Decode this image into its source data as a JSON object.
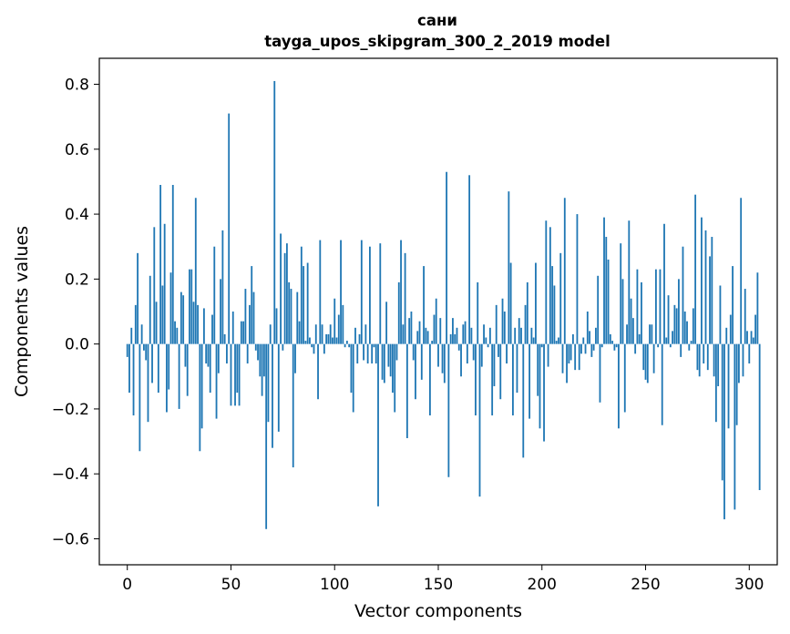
{
  "chart_data": {
    "type": "bar",
    "title": "сани",
    "subtitle": "tayga_upos_skipgram_300_2_2019 model",
    "xlabel": "Vector components",
    "ylabel": "Components values",
    "xlim": [
      -13.5,
      313.5
    ],
    "ylim": [
      -0.68,
      0.88
    ],
    "x_ticks": [
      0,
      50,
      100,
      150,
      200,
      250,
      300
    ],
    "x_tick_labels": [
      "0",
      "50",
      "100",
      "150",
      "200",
      "250",
      "300"
    ],
    "y_ticks": [
      -0.6,
      -0.4,
      -0.2,
      0.0,
      0.2,
      0.4,
      0.6,
      0.8
    ],
    "y_tick_labels": [
      "−0.6",
      "−0.4",
      "−0.2",
      "0.0",
      "0.2",
      "0.4",
      "0.6",
      "0.8"
    ],
    "grid": false,
    "bar_color": "#1f77b4",
    "values": [
      -0.04,
      -0.15,
      0.05,
      -0.22,
      0.12,
      0.28,
      -0.33,
      0.06,
      -0.02,
      -0.05,
      -0.24,
      0.21,
      -0.12,
      0.36,
      0.13,
      -0.15,
      0.49,
      0.18,
      0.37,
      -0.21,
      -0.14,
      0.22,
      0.49,
      0.07,
      0.05,
      -0.2,
      0.16,
      0.15,
      -0.07,
      -0.16,
      0.23,
      0.23,
      0.13,
      0.45,
      0.12,
      -0.33,
      -0.26,
      0.11,
      -0.06,
      -0.07,
      -0.15,
      0.09,
      0.3,
      -0.23,
      -0.09,
      0.2,
      0.35,
      0.03,
      -0.06,
      0.71,
      -0.19,
      0.1,
      -0.19,
      -0.15,
      -0.19,
      0.07,
      0.07,
      0.17,
      -0.06,
      0.12,
      0.24,
      0.16,
      -0.02,
      -0.05,
      -0.1,
      -0.16,
      -0.1,
      -0.57,
      -0.24,
      0.06,
      -0.32,
      0.81,
      0.11,
      -0.27,
      0.34,
      -0.02,
      0.28,
      0.31,
      0.19,
      0.17,
      -0.38,
      -0.09,
      0.16,
      0.07,
      0.3,
      0.24,
      0.01,
      0.25,
      0.02,
      -0.01,
      -0.03,
      0.06,
      -0.17,
      0.32,
      0.06,
      -0.03,
      0.03,
      0.03,
      0.06,
      0.02,
      0.14,
      0.02,
      0.09,
      0.32,
      0.12,
      -0.01,
      0.01,
      -0.01,
      -0.15,
      -0.21,
      0.05,
      -0.06,
      0.03,
      0.32,
      -0.05,
      0.06,
      -0.06,
      0.3,
      -0.06,
      -0.01,
      -0.06,
      -0.5,
      0.31,
      -0.11,
      -0.12,
      0.13,
      -0.07,
      -0.1,
      -0.15,
      -0.21,
      -0.05,
      0.19,
      0.32,
      0.06,
      0.28,
      -0.29,
      0.08,
      0.1,
      -0.05,
      -0.17,
      0.04,
      0.07,
      -0.11,
      0.24,
      0.05,
      0.04,
      -0.22,
      0.01,
      0.09,
      0.14,
      -0.07,
      0.08,
      -0.09,
      -0.12,
      0.53,
      -0.41,
      0.03,
      0.08,
      0.03,
      0.05,
      -0.02,
      -0.1,
      0.06,
      0.07,
      -0.06,
      0.52,
      0.05,
      -0.05,
      -0.22,
      0.19,
      -0.47,
      -0.07,
      0.06,
      0.02,
      -0.01,
      0.05,
      -0.22,
      -0.13,
      0.12,
      -0.04,
      -0.17,
      0.14,
      0.1,
      -0.06,
      0.47,
      0.25,
      -0.22,
      0.05,
      -0.15,
      0.08,
      0.05,
      -0.35,
      0.12,
      0.19,
      -0.23,
      0.05,
      0.02,
      0.25,
      -0.16,
      -0.26,
      -0.01,
      -0.3,
      0.38,
      -0.07,
      0.36,
      0.24,
      0.18,
      0.01,
      0.02,
      0.28,
      -0.09,
      0.45,
      -0.12,
      -0.06,
      -0.05,
      0.03,
      -0.08,
      0.4,
      -0.08,
      -0.03,
      0.02,
      -0.03,
      0.1,
      0.04,
      -0.04,
      -0.02,
      0.05,
      0.21,
      -0.18,
      -0.01,
      0.39,
      0.33,
      0.26,
      0.03,
      0.01,
      -0.02,
      -0.01,
      -0.26,
      0.31,
      0.2,
      -0.21,
      0.06,
      0.38,
      0.14,
      0.08,
      -0.03,
      0.23,
      0.03,
      0.19,
      -0.08,
      -0.11,
      -0.12,
      0.06,
      0.06,
      -0.09,
      0.23,
      -0.01,
      0.23,
      -0.25,
      0.37,
      0.02,
      0.15,
      -0.01,
      0.04,
      0.12,
      0.11,
      0.2,
      -0.04,
      0.3,
      0.1,
      0.07,
      -0.02,
      0.01,
      0.11,
      0.46,
      -0.08,
      -0.1,
      0.39,
      -0.06,
      0.35,
      -0.08,
      0.27,
      0.33,
      -0.1,
      -0.24,
      -0.13,
      0.18,
      -0.42,
      -0.54,
      0.05,
      -0.26,
      0.09,
      0.24,
      -0.51,
      -0.25,
      -0.12,
      0.45,
      -0.1,
      0.17,
      0.04,
      -0.06,
      0.04,
      0.02,
      0.09,
      0.22,
      -0.45
    ]
  }
}
